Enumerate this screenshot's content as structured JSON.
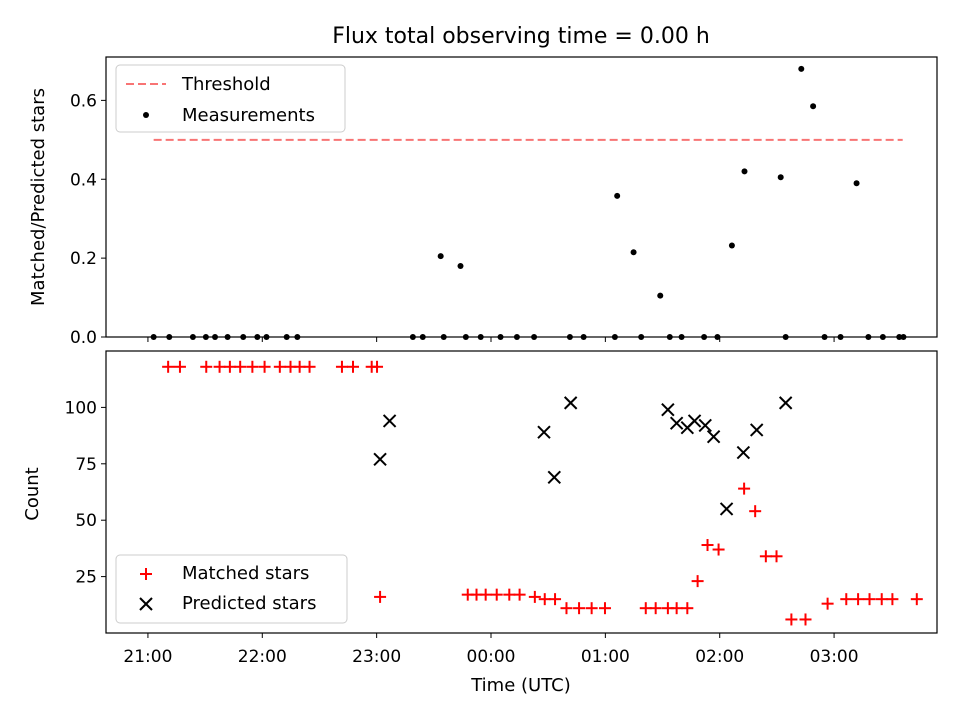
{
  "title": "Flux total observing time = 0.00 h",
  "chart_data": [
    {
      "type": "scatter",
      "ylabel": "Matched/Predicted stars",
      "xlim": [
        -11,
        207
      ],
      "ylim": [
        0,
        0.71
      ],
      "yticks": [
        0.0,
        0.2,
        0.4,
        0.6
      ],
      "ytick_labels": [
        "0.0",
        "0.2",
        "0.4",
        "0.6"
      ],
      "legend_position": "upper-left",
      "threshold": {
        "name": "Threshold",
        "value": 0.5,
        "x_range": [
          1.5,
          198
        ],
        "color": "#f87474",
        "style": "dashed"
      },
      "series": [
        {
          "name": "Measurements",
          "color": "#000000",
          "x": [
            1.5,
            5.6,
            11.8,
            15.2,
            17.6,
            20.9,
            25.0,
            28.7,
            31.1,
            36.4,
            39.2,
            69.5,
            72.1,
            76.8,
            77.6,
            82.0,
            83.4,
            87.3,
            92.5,
            96.8,
            101.3,
            110.7,
            114.3,
            122.5,
            123.1,
            127.4,
            129.4,
            134.4,
            136.9,
            140.0,
            145.9,
            149.4,
            153.2,
            156.5,
            166.0,
            167.3,
            171.4,
            174.5,
            177.5,
            181.7,
            185.9,
            189.0,
            192.8,
            197.1,
            198.2
          ],
          "y": [
            0,
            0,
            0,
            0,
            0,
            0,
            0,
            0,
            0,
            0,
            0,
            0,
            0,
            0.205,
            0,
            0.18,
            0,
            0,
            0,
            0,
            0,
            0,
            0,
            0,
            0.358,
            0.215,
            0,
            0.105,
            0,
            0,
            0,
            0,
            0.232,
            0.42,
            0.405,
            0,
            0.68,
            0.585,
            0,
            0,
            0.39,
            0,
            0,
            0,
            0
          ]
        }
      ]
    },
    {
      "type": "scatter",
      "xlabel": "Time (UTC)",
      "ylabel": "Count",
      "xlim": [
        -11,
        207
      ],
      "ylim": [
        0,
        125
      ],
      "yticks": [
        25,
        50,
        75,
        100
      ],
      "ytick_labels": [
        "25",
        "50",
        "75",
        "100"
      ],
      "xticks": [
        0,
        30,
        60,
        90,
        120,
        150,
        180
      ],
      "xtick_labels": [
        "21:00",
        "22:00",
        "23:00",
        "00:00",
        "01:00",
        "02:00",
        "03:00"
      ],
      "legend_position": "lower-left",
      "series": [
        {
          "name": "Matched stars",
          "color": "#ff0000",
          "marker": "plus",
          "x": [
            5.3,
            8.4,
            15.3,
            18.8,
            21.5,
            24.2,
            27.4,
            30.6,
            34.6,
            37.4,
            39.8,
            42.4,
            50.9,
            53.8,
            58.7,
            60.1,
            60.9,
            83.9,
            86.2,
            88.6,
            91.5,
            94.8,
            97.5,
            101.5,
            104.1,
            106.8,
            109.8,
            113.1,
            116.4,
            119.9,
            130.6,
            133.2,
            136.4,
            138.7,
            141.5,
            144.2,
            146.8,
            149.7,
            156.4,
            159.3,
            162.1,
            164.9,
            168.8,
            172.5,
            178.3,
            183.2,
            186.3,
            189.3,
            192.5,
            195.3,
            201.7
          ],
          "y": [
            118,
            118,
            118,
            118,
            118,
            118,
            118,
            118,
            118,
            118,
            118,
            118,
            118,
            118,
            118,
            118,
            16,
            17,
            17,
            17,
            17,
            17,
            17,
            16,
            15,
            15,
            11,
            11,
            11,
            11,
            11,
            11,
            11,
            11,
            11,
            23,
            39,
            37,
            64,
            54,
            34,
            34,
            6,
            6,
            13,
            15,
            15,
            15,
            15,
            15,
            15
          ]
        },
        {
          "name": "Predicted stars",
          "color": "#000000",
          "marker": "x",
          "x": [
            60.9,
            63.4,
            103.9,
            106.6,
            110.9,
            136.4,
            138.7,
            141.5,
            143.4,
            146.2,
            148.4,
            151.8,
            156.2,
            159.7,
            167.3
          ],
          "y": [
            77,
            94,
            89,
            69,
            102,
            99,
            93,
            91,
            94,
            92,
            87,
            55,
            80,
            90,
            102
          ]
        }
      ]
    }
  ]
}
